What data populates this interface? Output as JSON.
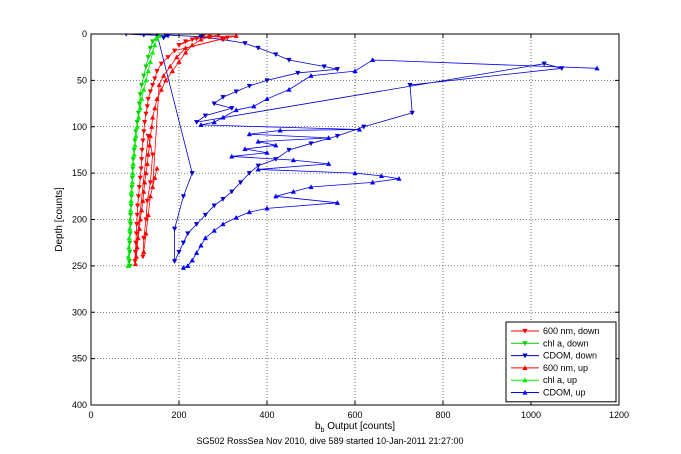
{
  "chart_data": {
    "type": "scatter",
    "xlabel_main": "b",
    "xlabel_sub": "b",
    "xlabel_rest": " Output [counts]",
    "ylabel": "Depth [counts]",
    "caption": "SG502 RossSea Nov 2010, dive 589 started 10-Jan-2011 21:27:00",
    "xlim": [
      0,
      1200
    ],
    "ylim": [
      0,
      400
    ],
    "y_reversed": true,
    "xticks": [
      0,
      200,
      400,
      600,
      800,
      1000,
      1200
    ],
    "yticks": [
      0,
      50,
      100,
      150,
      200,
      250,
      300,
      350,
      400
    ],
    "grid": true,
    "grid_style": "dotted",
    "legend_position": "bottom-right",
    "series": [
      {
        "name": "600 nm, down",
        "color": "#ff0000",
        "marker": "triangle-down",
        "points": [
          [
            290,
            1
          ],
          [
            270,
            3
          ],
          [
            240,
            5
          ],
          [
            215,
            8
          ],
          [
            200,
            12
          ],
          [
            230,
            6
          ],
          [
            255,
            2
          ],
          [
            310,
            4
          ],
          [
            190,
            18
          ],
          [
            175,
            25
          ],
          [
            160,
            32
          ],
          [
            150,
            40
          ],
          [
            145,
            48
          ],
          [
            140,
            55
          ],
          [
            135,
            62
          ],
          [
            130,
            70
          ],
          [
            128,
            78
          ],
          [
            125,
            86
          ],
          [
            122,
            95
          ],
          [
            120,
            105
          ],
          [
            118,
            115
          ],
          [
            116,
            125
          ],
          [
            115,
            135
          ],
          [
            114,
            145
          ],
          [
            112,
            155
          ],
          [
            110,
            165
          ],
          [
            108,
            175
          ],
          [
            106,
            185
          ],
          [
            105,
            195
          ],
          [
            104,
            205
          ],
          [
            103,
            215
          ],
          [
            102,
            225
          ],
          [
            101,
            235
          ],
          [
            100,
            245
          ],
          [
            130,
            110
          ],
          [
            140,
            130
          ],
          [
            135,
            160
          ],
          [
            128,
            180
          ],
          [
            125,
            200
          ],
          [
            120,
            220
          ],
          [
            118,
            240
          ]
        ]
      },
      {
        "name": "chl a, down",
        "color": "#00cc00",
        "marker": "triangle-down",
        "points": [
          [
            150,
            2
          ],
          [
            140,
            8
          ],
          [
            135,
            15
          ],
          [
            130,
            25
          ],
          [
            125,
            35
          ],
          [
            120,
            45
          ],
          [
            115,
            55
          ],
          [
            112,
            65
          ],
          [
            110,
            75
          ],
          [
            108,
            85
          ],
          [
            105,
            95
          ],
          [
            102,
            105
          ],
          [
            100,
            115
          ],
          [
            98,
            125
          ],
          [
            96,
            135
          ],
          [
            95,
            145
          ],
          [
            94,
            155
          ],
          [
            93,
            165
          ],
          [
            92,
            175
          ],
          [
            91,
            185
          ],
          [
            90,
            195
          ],
          [
            90,
            205
          ],
          [
            89,
            215
          ],
          [
            88,
            225
          ],
          [
            88,
            235
          ],
          [
            87,
            245
          ],
          [
            89,
            250
          ]
        ]
      },
      {
        "name": "CDOM, down",
        "color": "#0000cc",
        "marker": "triangle-down",
        "points": [
          [
            170,
            1
          ],
          [
            250,
            3
          ],
          [
            300,
            6
          ],
          [
            350,
            10
          ],
          [
            380,
            15
          ],
          [
            420,
            22
          ],
          [
            450,
            28
          ],
          [
            530,
            35
          ],
          [
            560,
            38
          ],
          [
            470,
            42
          ],
          [
            400,
            50
          ],
          [
            360,
            56
          ],
          [
            330,
            62
          ],
          [
            300,
            68
          ],
          [
            280,
            75
          ],
          [
            320,
            80
          ],
          [
            260,
            88
          ],
          [
            240,
            95
          ],
          [
            1030,
            32
          ],
          [
            1070,
            37
          ],
          [
            725,
            55
          ],
          [
            730,
            85
          ],
          [
            620,
            100
          ],
          [
            560,
            110
          ],
          [
            500,
            118
          ],
          [
            450,
            125
          ],
          [
            420,
            135
          ],
          [
            380,
            142
          ],
          [
            360,
            150
          ],
          [
            340,
            160
          ],
          [
            320,
            170
          ],
          [
            300,
            178
          ],
          [
            280,
            185
          ],
          [
            260,
            195
          ],
          [
            240,
            205
          ],
          [
            220,
            215
          ],
          [
            210,
            225
          ],
          [
            200,
            235
          ],
          [
            190,
            245
          ],
          [
            190,
            210
          ],
          [
            210,
            175
          ],
          [
            230,
            150
          ],
          [
            150,
            0
          ],
          [
            120,
            1
          ],
          [
            80,
            0
          ],
          [
            175,
            2
          ],
          [
            165,
            4
          ]
        ]
      },
      {
        "name": "600 nm, up",
        "color": "#ff0000",
        "marker": "triangle-up",
        "points": [
          [
            101,
            248
          ],
          [
            103,
            240
          ],
          [
            105,
            230
          ],
          [
            107,
            220
          ],
          [
            110,
            210
          ],
          [
            112,
            200
          ],
          [
            115,
            190
          ],
          [
            118,
            180
          ],
          [
            120,
            170
          ],
          [
            122,
            160
          ],
          [
            125,
            150
          ],
          [
            128,
            140
          ],
          [
            130,
            130
          ],
          [
            133,
            120
          ],
          [
            135,
            110
          ],
          [
            138,
            100
          ],
          [
            140,
            90
          ],
          [
            145,
            80
          ],
          [
            150,
            70
          ],
          [
            160,
            60
          ],
          [
            170,
            50
          ],
          [
            185,
            40
          ],
          [
            200,
            30
          ],
          [
            215,
            20
          ],
          [
            230,
            12
          ],
          [
            250,
            6
          ],
          [
            270,
            3
          ],
          [
            330,
            2
          ],
          [
            300,
            5
          ],
          [
            215,
            15
          ],
          [
            195,
            25
          ],
          [
            180,
            35
          ],
          [
            165,
            45
          ],
          [
            155,
            55
          ],
          [
            140,
            165
          ],
          [
            145,
            155
          ],
          [
            150,
            145
          ],
          [
            135,
            175
          ],
          [
            130,
            195
          ],
          [
            125,
            215
          ],
          [
            120,
            235
          ]
        ]
      },
      {
        "name": "chl a, up",
        "color": "#00ee00",
        "marker": "triangle-up",
        "points": [
          [
            84,
            250
          ],
          [
            85,
            240
          ],
          [
            86,
            230
          ],
          [
            87,
            220
          ],
          [
            88,
            210
          ],
          [
            89,
            200
          ],
          [
            90,
            190
          ],
          [
            91,
            180
          ],
          [
            92,
            170
          ],
          [
            94,
            160
          ],
          [
            95,
            150
          ],
          [
            96,
            140
          ],
          [
            98,
            130
          ],
          [
            100,
            120
          ],
          [
            102,
            110
          ],
          [
            105,
            100
          ],
          [
            108,
            90
          ],
          [
            112,
            80
          ],
          [
            115,
            70
          ],
          [
            120,
            60
          ],
          [
            125,
            50
          ],
          [
            130,
            40
          ],
          [
            135,
            30
          ],
          [
            140,
            20
          ],
          [
            145,
            12
          ],
          [
            150,
            5
          ],
          [
            155,
            2
          ]
        ]
      },
      {
        "name": "CDOM, up",
        "color": "#0000ff",
        "marker": "triangle-up",
        "points": [
          [
            1150,
            37
          ],
          [
            640,
            28
          ],
          [
            600,
            40
          ],
          [
            500,
            45
          ],
          [
            450,
            60
          ],
          [
            400,
            70
          ],
          [
            370,
            78
          ],
          [
            330,
            82
          ],
          [
            300,
            90
          ],
          [
            280,
            95
          ],
          [
            250,
            98
          ],
          [
            610,
            103
          ],
          [
            430,
            104
          ],
          [
            360,
            108
          ],
          [
            540,
            112
          ],
          [
            380,
            116
          ],
          [
            420,
            120
          ],
          [
            350,
            124
          ],
          [
            400,
            128
          ],
          [
            320,
            132
          ],
          [
            460,
            136
          ],
          [
            540,
            140
          ],
          [
            380,
            146
          ],
          [
            600,
            150
          ],
          [
            660,
            153
          ],
          [
            700,
            156
          ],
          [
            640,
            160
          ],
          [
            500,
            165
          ],
          [
            460,
            170
          ],
          [
            420,
            175
          ],
          [
            560,
            182
          ],
          [
            400,
            188
          ],
          [
            360,
            192
          ],
          [
            330,
            198
          ],
          [
            300,
            205
          ],
          [
            280,
            212
          ],
          [
            260,
            220
          ],
          [
            250,
            228
          ],
          [
            240,
            236
          ],
          [
            230,
            244
          ],
          [
            220,
            250
          ],
          [
            210,
            252
          ]
        ]
      }
    ]
  }
}
